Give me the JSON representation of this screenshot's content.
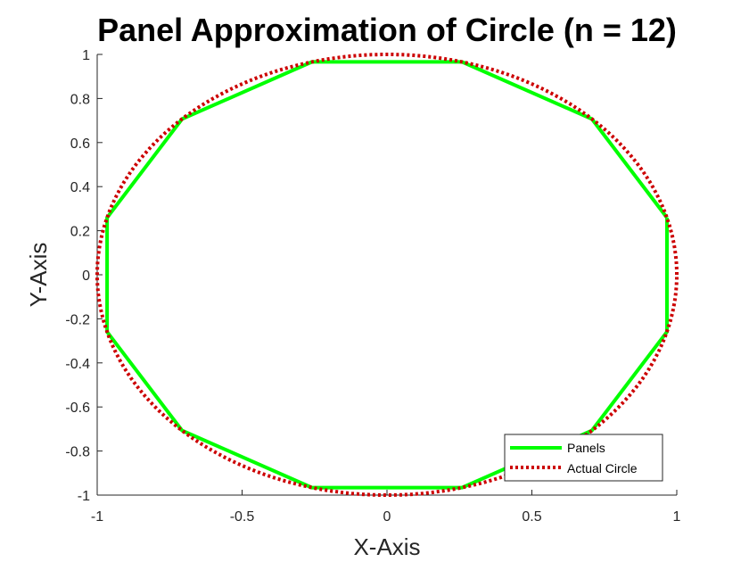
{
  "chart_data": {
    "type": "line",
    "title": "Panel Approximation of Circle (n = 12)",
    "xlabel": "X-Axis",
    "ylabel": "Y-Axis",
    "xlim": [
      -1,
      1
    ],
    "ylim": [
      -1,
      1
    ],
    "xticks": [
      -1,
      -0.5,
      0,
      0.5,
      1
    ],
    "xtick_labels": [
      "-1",
      "-0.5",
      "0",
      "0.5",
      "1"
    ],
    "yticks": [
      -1,
      -0.8,
      -0.6,
      -0.4,
      -0.2,
      0,
      0.2,
      0.4,
      0.6,
      0.8,
      1
    ],
    "ytick_labels": [
      "-1",
      "-0.8",
      "-0.6",
      "-0.4",
      "-0.2",
      "0",
      "0.2",
      "0.4",
      "0.6",
      "0.8",
      "1"
    ],
    "grid": false,
    "legend_position": "bottom-right",
    "series": [
      {
        "name": "Panels",
        "color": "#00ff00",
        "style": "solid",
        "x": [
          0.966,
          0.707,
          0.259,
          -0.259,
          -0.707,
          -0.966,
          -0.966,
          -0.707,
          -0.259,
          0.259,
          0.707,
          0.966,
          0.966
        ],
        "y": [
          0.259,
          0.707,
          0.966,
          0.966,
          0.707,
          0.259,
          -0.259,
          -0.707,
          -0.966,
          -0.966,
          -0.707,
          -0.259,
          0.259
        ]
      },
      {
        "name": "Actual Circle",
        "color": "#cc0000",
        "style": "dotted",
        "function": "unit circle x = cos(t), y = sin(t)",
        "x": [],
        "y": []
      }
    ]
  }
}
